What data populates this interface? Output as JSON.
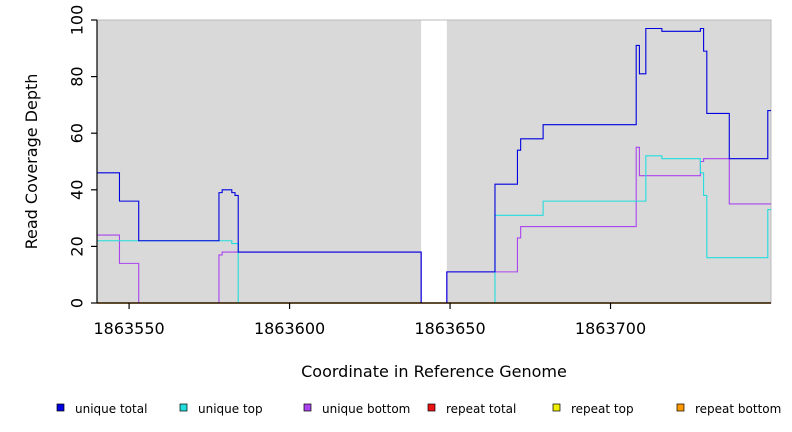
{
  "chart_data": {
    "type": "line",
    "step": true,
    "title": "",
    "xlabel": "Coordinate in Reference Genome",
    "ylabel": "Read Coverage Depth",
    "xlim": [
      1863540,
      1863750
    ],
    "ylim": [
      0,
      100
    ],
    "x_ticks": [
      1863550,
      1863600,
      1863650,
      1863700
    ],
    "y_ticks": [
      0,
      20,
      40,
      60,
      80,
      100
    ],
    "grid": false,
    "panel_background": "#d9d9d9",
    "gap_region": [
      1863641,
      1863649
    ],
    "legend_position": "bottom",
    "series": [
      {
        "name": "unique total",
        "color": "#0000e0",
        "points": [
          [
            1863540,
            46
          ],
          [
            1863547,
            46
          ],
          [
            1863547,
            36
          ],
          [
            1863553,
            36
          ],
          [
            1863553,
            22
          ],
          [
            1863578,
            22
          ],
          [
            1863578,
            39
          ],
          [
            1863579,
            39
          ],
          [
            1863579,
            40
          ],
          [
            1863582,
            40
          ],
          [
            1863582,
            39
          ],
          [
            1863583,
            39
          ],
          [
            1863583,
            38
          ],
          [
            1863584,
            38
          ],
          [
            1863584,
            18
          ],
          [
            1863641,
            18
          ],
          [
            1863641,
            0
          ],
          [
            1863649,
            0
          ],
          [
            1863649,
            11
          ],
          [
            1863664,
            11
          ],
          [
            1863664,
            42
          ],
          [
            1863671,
            42
          ],
          [
            1863671,
            54
          ],
          [
            1863672,
            54
          ],
          [
            1863672,
            58
          ],
          [
            1863679,
            58
          ],
          [
            1863679,
            63
          ],
          [
            1863708,
            63
          ],
          [
            1863708,
            91
          ],
          [
            1863709,
            91
          ],
          [
            1863709,
            81
          ],
          [
            1863711,
            81
          ],
          [
            1863711,
            97
          ],
          [
            1863716,
            97
          ],
          [
            1863716,
            96
          ],
          [
            1863728,
            96
          ],
          [
            1863728,
            97
          ],
          [
            1863729,
            97
          ],
          [
            1863729,
            89
          ],
          [
            1863730,
            89
          ],
          [
            1863730,
            67
          ],
          [
            1863737,
            67
          ],
          [
            1863737,
            51
          ],
          [
            1863749,
            51
          ],
          [
            1863749,
            68
          ],
          [
            1863750,
            68
          ]
        ]
      },
      {
        "name": "unique top",
        "color": "#22dddd",
        "points": [
          [
            1863540,
            22
          ],
          [
            1863582,
            22
          ],
          [
            1863582,
            21
          ],
          [
            1863584,
            21
          ],
          [
            1863584,
            0
          ],
          [
            1863664,
            0
          ],
          [
            1863664,
            31
          ],
          [
            1863679,
            31
          ],
          [
            1863679,
            36
          ],
          [
            1863711,
            36
          ],
          [
            1863711,
            52
          ],
          [
            1863716,
            52
          ],
          [
            1863716,
            51
          ],
          [
            1863728,
            51
          ],
          [
            1863728,
            46
          ],
          [
            1863729,
            46
          ],
          [
            1863729,
            38
          ],
          [
            1863730,
            38
          ],
          [
            1863730,
            16
          ],
          [
            1863749,
            16
          ],
          [
            1863749,
            33
          ],
          [
            1863750,
            33
          ]
        ]
      },
      {
        "name": "unique bottom",
        "color": "#aa44ee",
        "points": [
          [
            1863540,
            24
          ],
          [
            1863547,
            24
          ],
          [
            1863547,
            14
          ],
          [
            1863553,
            14
          ],
          [
            1863553,
            0
          ],
          [
            1863578,
            0
          ],
          [
            1863578,
            17
          ],
          [
            1863579,
            17
          ],
          [
            1863579,
            18
          ],
          [
            1863641,
            18
          ],
          [
            1863641,
            0
          ],
          [
            1863649,
            0
          ],
          [
            1863649,
            11
          ],
          [
            1863671,
            11
          ],
          [
            1863671,
            23
          ],
          [
            1863672,
            23
          ],
          [
            1863672,
            27
          ],
          [
            1863708,
            27
          ],
          [
            1863708,
            55
          ],
          [
            1863709,
            55
          ],
          [
            1863709,
            45
          ],
          [
            1863728,
            45
          ],
          [
            1863728,
            50
          ],
          [
            1863729,
            50
          ],
          [
            1863729,
            51
          ],
          [
            1863737,
            51
          ],
          [
            1863737,
            35
          ],
          [
            1863750,
            35
          ]
        ]
      },
      {
        "name": "repeat total",
        "color": "#ee1111",
        "points": [
          [
            1863540,
            0
          ],
          [
            1863750,
            0
          ]
        ]
      },
      {
        "name": "repeat top",
        "color": "#eeee00",
        "points": [
          [
            1863540,
            0
          ],
          [
            1863750,
            0
          ]
        ]
      },
      {
        "name": "repeat bottom",
        "color": "#ff9900",
        "points": [
          [
            1863540,
            0
          ],
          [
            1863750,
            0
          ]
        ]
      }
    ]
  }
}
